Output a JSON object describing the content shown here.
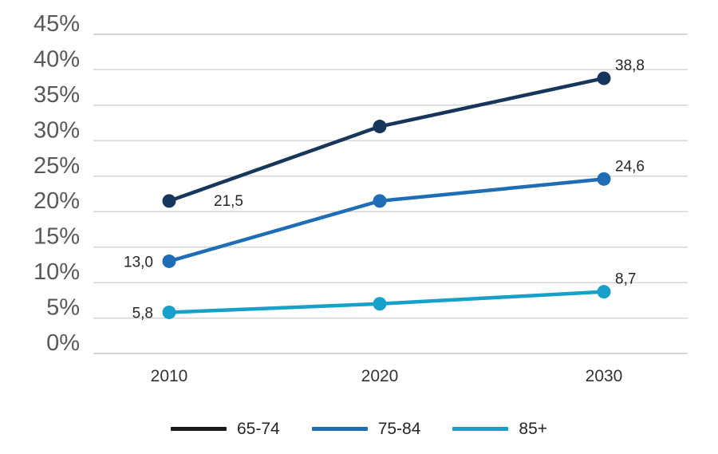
{
  "chart_data": {
    "type": "line",
    "title": "",
    "categories": [
      "2010",
      "2020",
      "2030"
    ],
    "series": [
      {
        "name": "65-74",
        "color": "#17365c",
        "legend_swatch_color": "#1a1a1a",
        "values": [
          21.5,
          32.0,
          38.8
        ],
        "data_labels": [
          {
            "text": "21,5",
            "placement": "right-center"
          },
          null,
          {
            "text": "38,8",
            "placement": "right-above"
          }
        ]
      },
      {
        "name": "75-84",
        "color": "#1e6db5",
        "legend_swatch_color": "#1e6db5",
        "values": [
          13.0,
          21.5,
          24.6
        ],
        "data_labels": [
          {
            "text": "13,0",
            "placement": "left-center"
          },
          null,
          {
            "text": "24,6",
            "placement": "right-above"
          }
        ]
      },
      {
        "name": "85+",
        "color": "#17a0c9",
        "legend_swatch_color": "#17a0c9",
        "values": [
          5.8,
          7.0,
          8.7
        ],
        "data_labels": [
          {
            "text": "5,8",
            "placement": "left-center"
          },
          null,
          {
            "text": "8,7",
            "placement": "right-above"
          }
        ]
      }
    ],
    "y_axis": {
      "min": 0,
      "max": 45,
      "step": 5,
      "tick_suffix": "%",
      "tick_labels": [
        "45%",
        "40%",
        "35%",
        "30%",
        "25%",
        "20%",
        "15%",
        "10%",
        "5%",
        "0%"
      ]
    },
    "x_axis": {
      "tick_labels": [
        "2010",
        "2020",
        "2030"
      ]
    },
    "grid": true,
    "legend_position": "bottom",
    "decimal_separator": ","
  },
  "colors": {
    "background": "#ffffff",
    "gridline": "#d6d6d6",
    "y_tick_text": "#595959",
    "x_tick_text": "#333333",
    "data_label_text": "#262626",
    "legend_text": "#262626"
  }
}
